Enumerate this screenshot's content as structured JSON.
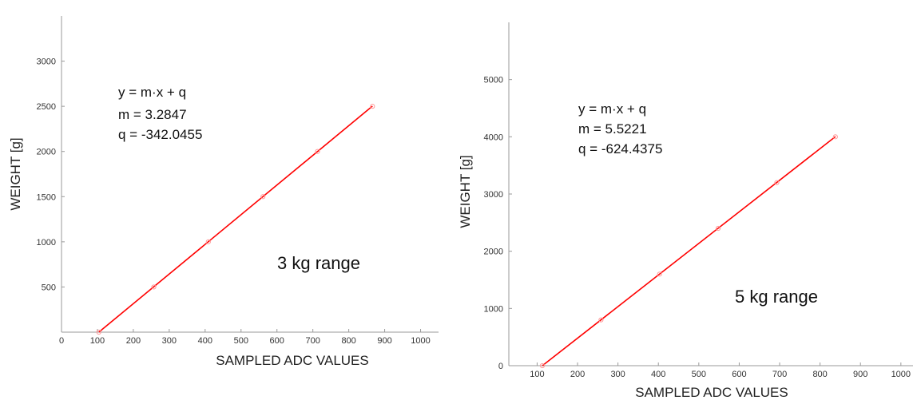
{
  "chart_data": [
    {
      "type": "scatter",
      "xlabel": "SAMPLED ADC VALUES",
      "ylabel": "WEIGHT [g]",
      "xlim": [
        0,
        1050
      ],
      "ylim": [
        0,
        3500
      ],
      "xticks": [
        0,
        100,
        200,
        300,
        400,
        500,
        600,
        700,
        800,
        900,
        1000
      ],
      "xtick_labels": [
        "0",
        "100",
        "200",
        "300",
        "400",
        "500",
        "600",
        "700",
        "800",
        "900",
        "1000"
      ],
      "yticks": [
        500,
        1000,
        1500,
        2000,
        2500,
        3000
      ],
      "ytick_labels": [
        "500",
        "1000",
        "1500",
        "2000",
        "2500",
        "3000"
      ],
      "series": [
        {
          "x": [
            104,
            257,
            409,
            561,
            713,
            866
          ],
          "y": [
            0,
            500,
            1000,
            1500,
            2000,
            2500
          ],
          "marker_color": "#ff9999"
        }
      ],
      "fit": {
        "x": [
          104,
          866
        ],
        "y": [
          0,
          2502
        ],
        "color": "#ff0000"
      },
      "annotations": {
        "equation": "y = m·x + q",
        "m": "m = 3.2847",
        "q": "q = -342.0455",
        "range": "3 kg range"
      }
    },
    {
      "type": "scatter",
      "xlabel": "SAMPLED ADC VALUES",
      "ylabel": "WEIGHT [g]",
      "xlim": [
        30,
        1030
      ],
      "ylim": [
        0,
        6000
      ],
      "xticks": [
        100,
        200,
        300,
        400,
        500,
        600,
        700,
        800,
        900,
        1000
      ],
      "xtick_labels": [
        "100",
        "200",
        "300",
        "400",
        "500",
        "600",
        "700",
        "800",
        "900",
        "1000"
      ],
      "yticks": [
        0,
        1000,
        2000,
        3000,
        4000,
        5000
      ],
      "ytick_labels": [
        "0",
        "1000",
        "2000",
        "3000",
        "4000",
        "5000"
      ],
      "series": [
        {
          "x": [
            113,
            258,
            403,
            548,
            693,
            838
          ],
          "y": [
            0,
            800,
            1600,
            2400,
            3200,
            4000
          ],
          "marker_color": "#ff9999"
        }
      ],
      "fit": {
        "x": [
          113,
          838
        ],
        "y": [
          0,
          4003
        ],
        "color": "#ff0000"
      },
      "annotations": {
        "equation": "y = m·x + q",
        "m": "m = 5.5221",
        "q": "q = -624.4375",
        "range": "5 kg range"
      }
    }
  ]
}
